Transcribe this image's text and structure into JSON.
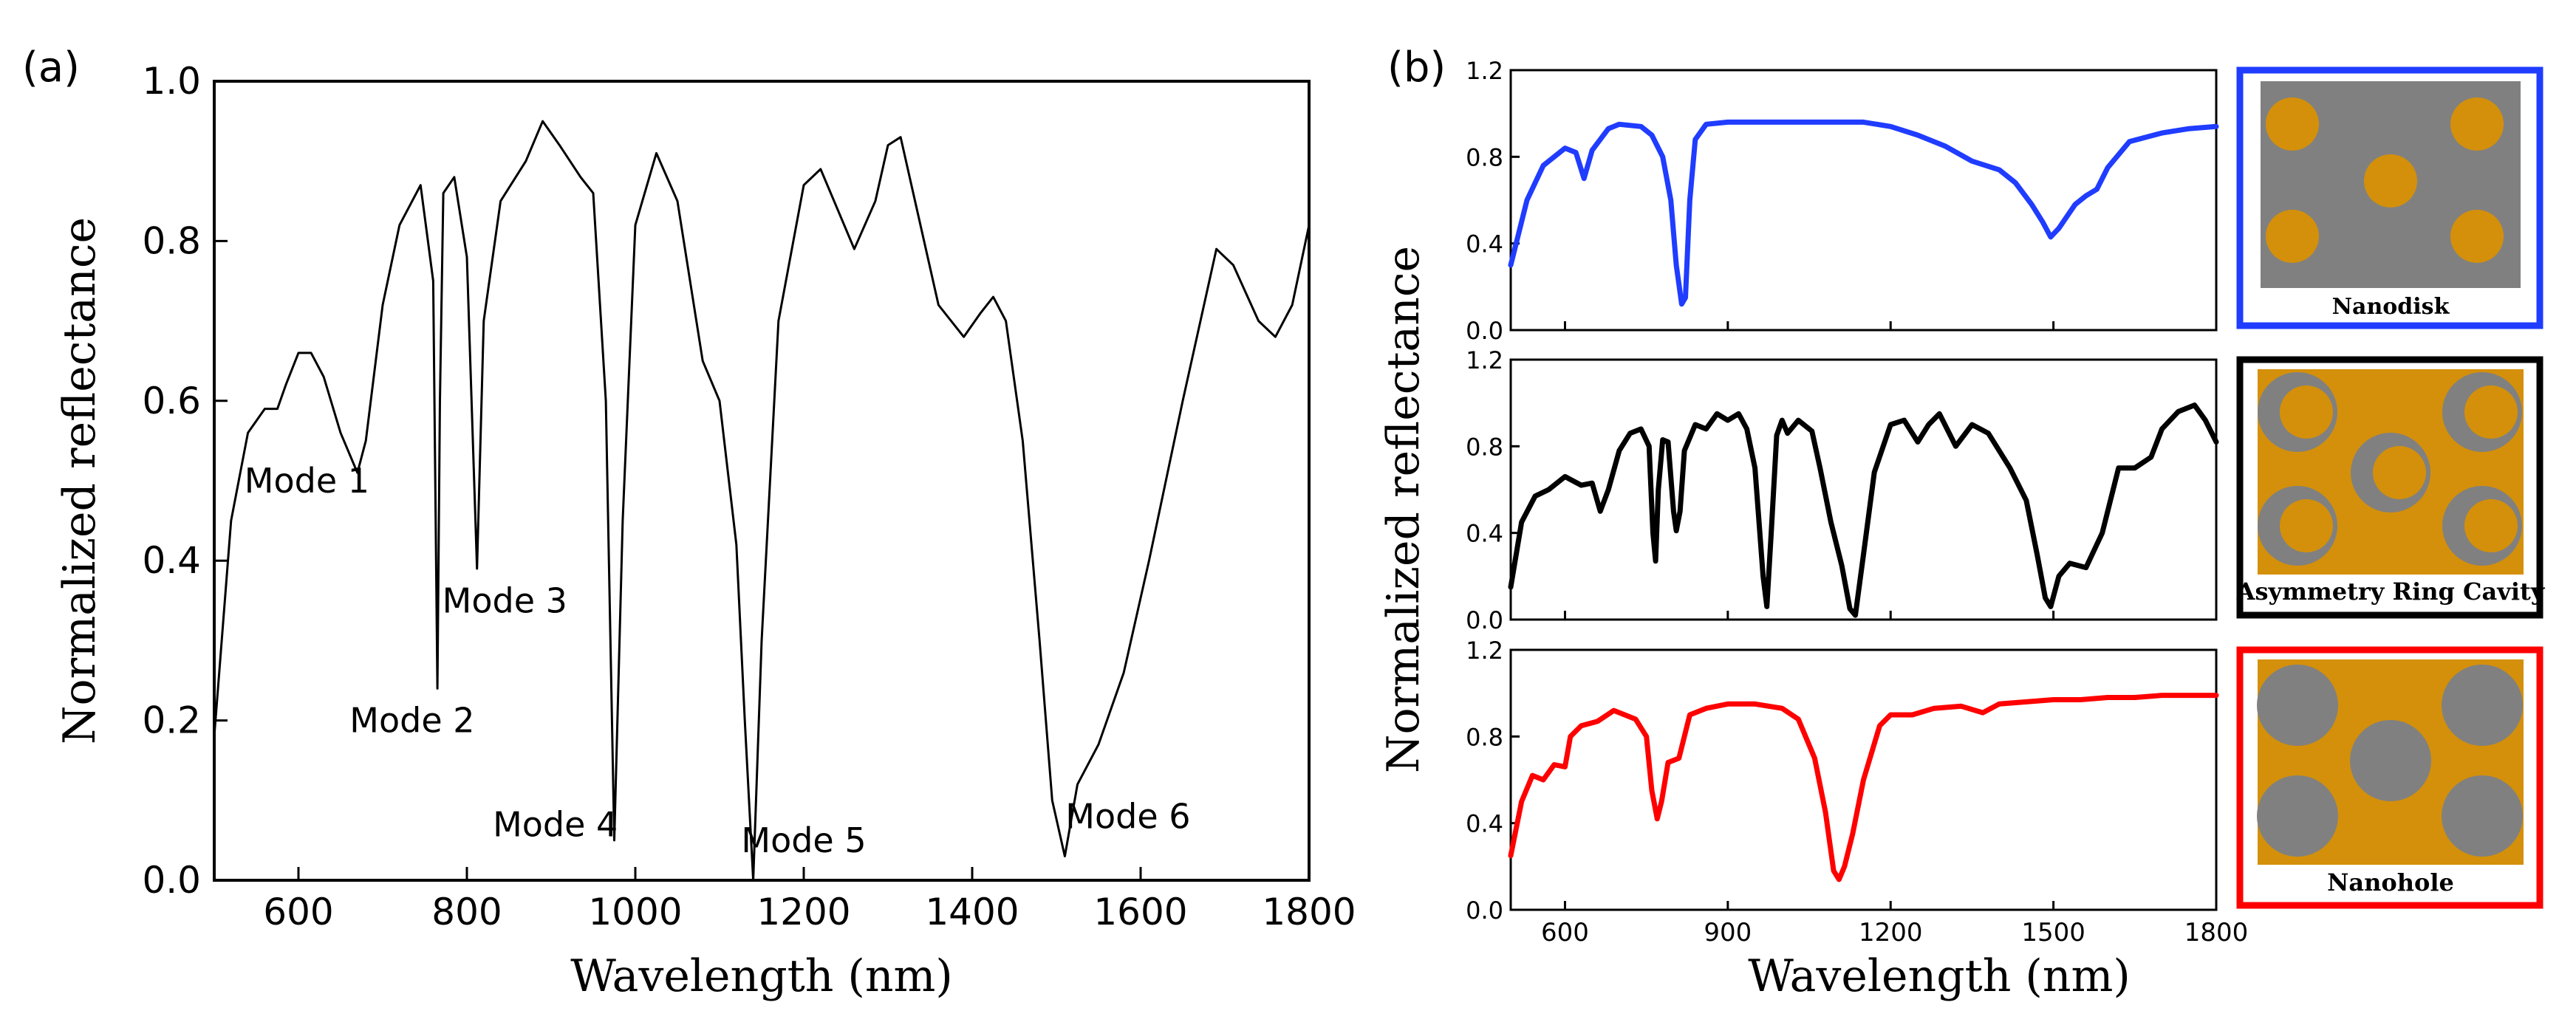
{
  "chart_data": [
    {
      "type": "line",
      "panel_label": "(a)",
      "xlabel": "Wavelength (nm)",
      "ylabel": "Normalized reflectance",
      "xlim": [
        500,
        1800
      ],
      "ylim": [
        0,
        1.0
      ],
      "xticks": [
        600,
        800,
        1000,
        1200,
        1400,
        1600,
        1800
      ],
      "xtick_labels": [
        "600",
        "800",
        "1000",
        "1200",
        "1400",
        "1600",
        "1800"
      ],
      "yticks": [
        0.0,
        0.2,
        0.4,
        0.6,
        0.8,
        1.0
      ],
      "ytick_labels": [
        "0.0",
        "0.2",
        "0.4",
        "0.6",
        "0.8",
        "1.0"
      ],
      "series": [
        {
          "name": "reflectance",
          "color": "#000000",
          "x": [
            500,
            520,
            540,
            560,
            575,
            585,
            600,
            615,
            630,
            650,
            670,
            680,
            700,
            720,
            745,
            760,
            765,
            768,
            772,
            785,
            800,
            812,
            820,
            840,
            870,
            890,
            910,
            935,
            950,
            965,
            975,
            985,
            1000,
            1025,
            1050,
            1080,
            1100,
            1120,
            1130,
            1140,
            1150,
            1170,
            1200,
            1220,
            1240,
            1260,
            1285,
            1300,
            1315,
            1330,
            1360,
            1390,
            1410,
            1425,
            1440,
            1460,
            1480,
            1495,
            1510,
            1525,
            1550,
            1580,
            1610,
            1650,
            1690,
            1710,
            1740,
            1760,
            1780,
            1800
          ],
          "y": [
            0.18,
            0.45,
            0.56,
            0.59,
            0.59,
            0.62,
            0.66,
            0.66,
            0.63,
            0.56,
            0.51,
            0.55,
            0.72,
            0.82,
            0.87,
            0.75,
            0.24,
            0.6,
            0.86,
            0.88,
            0.78,
            0.39,
            0.7,
            0.85,
            0.9,
            0.95,
            0.92,
            0.88,
            0.86,
            0.6,
            0.05,
            0.45,
            0.82,
            0.91,
            0.85,
            0.65,
            0.6,
            0.42,
            0.2,
            0.0,
            0.3,
            0.7,
            0.87,
            0.89,
            0.84,
            0.79,
            0.85,
            0.92,
            0.93,
            0.86,
            0.72,
            0.68,
            0.71,
            0.73,
            0.7,
            0.55,
            0.3,
            0.1,
            0.03,
            0.12,
            0.17,
            0.26,
            0.4,
            0.6,
            0.79,
            0.77,
            0.7,
            0.68,
            0.72,
            0.82
          ]
        }
      ],
      "annotations": [
        {
          "text": "Mode 1",
          "x": 610,
          "y": 0.5
        },
        {
          "text": "Mode 2",
          "x": 735,
          "y": 0.2
        },
        {
          "text": "Mode 3",
          "x": 845,
          "y": 0.35
        },
        {
          "text": "Mode 4",
          "x": 905,
          "y": 0.07
        },
        {
          "text": "Mode 5",
          "x": 1200,
          "y": 0.05
        },
        {
          "text": "Mode 6",
          "x": 1585,
          "y": 0.08
        }
      ]
    },
    {
      "type": "line",
      "panel_label": "(b)",
      "xlabel": "Wavelength (nm)",
      "ylabel": "Normalized reflectance",
      "xlim": [
        500,
        1800
      ],
      "ylim": [
        0,
        1.2
      ],
      "xticks": [
        600,
        900,
        1200,
        1500,
        1800
      ],
      "xtick_labels": [
        "600",
        "900",
        "1200",
        "1500",
        "1800"
      ],
      "yticks": [
        0.0,
        0.4,
        0.8,
        1.2
      ],
      "ytick_labels": [
        "0.0",
        "0.4",
        "0.8",
        "1.2"
      ],
      "subplots": [
        {
          "name": "Nanodisk",
          "color": "#1f3cff",
          "x": [
            500,
            530,
            560,
            600,
            620,
            635,
            650,
            680,
            700,
            740,
            760,
            780,
            795,
            805,
            815,
            822,
            830,
            840,
            860,
            900,
            1000,
            1100,
            1150,
            1200,
            1250,
            1300,
            1350,
            1400,
            1430,
            1460,
            1480,
            1495,
            1510,
            1540,
            1560,
            1580,
            1600,
            1640,
            1700,
            1750,
            1800
          ],
          "y": [
            0.3,
            0.6,
            0.76,
            0.84,
            0.82,
            0.7,
            0.83,
            0.93,
            0.95,
            0.94,
            0.9,
            0.8,
            0.6,
            0.3,
            0.12,
            0.15,
            0.6,
            0.88,
            0.95,
            0.96,
            0.96,
            0.96,
            0.96,
            0.94,
            0.9,
            0.85,
            0.78,
            0.74,
            0.68,
            0.58,
            0.5,
            0.43,
            0.47,
            0.58,
            0.62,
            0.65,
            0.75,
            0.87,
            0.91,
            0.93,
            0.94
          ]
        },
        {
          "name": "Asymmetry Ring Cavity",
          "color": "#000000",
          "x": [
            500,
            520,
            545,
            570,
            600,
            630,
            650,
            665,
            680,
            700,
            720,
            740,
            755,
            762,
            767,
            772,
            780,
            790,
            800,
            805,
            812,
            820,
            840,
            860,
            880,
            900,
            920,
            935,
            950,
            965,
            972,
            980,
            990,
            1000,
            1010,
            1030,
            1055,
            1070,
            1090,
            1110,
            1125,
            1135,
            1150,
            1170,
            1200,
            1225,
            1250,
            1270,
            1290,
            1320,
            1350,
            1380,
            1420,
            1450,
            1470,
            1485,
            1495,
            1510,
            1530,
            1560,
            1590,
            1620,
            1650,
            1680,
            1700,
            1730,
            1760,
            1780,
            1800
          ],
          "y": [
            0.15,
            0.45,
            0.57,
            0.6,
            0.66,
            0.62,
            0.63,
            0.5,
            0.6,
            0.78,
            0.86,
            0.88,
            0.8,
            0.4,
            0.27,
            0.6,
            0.83,
            0.82,
            0.5,
            0.41,
            0.5,
            0.78,
            0.9,
            0.88,
            0.95,
            0.92,
            0.95,
            0.88,
            0.7,
            0.2,
            0.06,
            0.4,
            0.85,
            0.92,
            0.86,
            0.92,
            0.87,
            0.7,
            0.45,
            0.25,
            0.05,
            0.02,
            0.3,
            0.68,
            0.9,
            0.92,
            0.82,
            0.9,
            0.95,
            0.8,
            0.9,
            0.86,
            0.7,
            0.55,
            0.3,
            0.1,
            0.06,
            0.2,
            0.26,
            0.24,
            0.4,
            0.7,
            0.7,
            0.75,
            0.88,
            0.96,
            0.99,
            0.92,
            0.82
          ]
        },
        {
          "name": "Nanohole",
          "color": "#ff0000",
          "x": [
            500,
            520,
            540,
            560,
            580,
            600,
            610,
            630,
            660,
            690,
            710,
            730,
            750,
            760,
            770,
            778,
            790,
            810,
            830,
            860,
            900,
            950,
            1000,
            1030,
            1060,
            1080,
            1095,
            1105,
            1115,
            1130,
            1150,
            1180,
            1200,
            1240,
            1280,
            1330,
            1370,
            1400,
            1450,
            1500,
            1550,
            1600,
            1650,
            1700,
            1800
          ],
          "y": [
            0.25,
            0.5,
            0.62,
            0.6,
            0.67,
            0.66,
            0.8,
            0.85,
            0.87,
            0.92,
            0.9,
            0.88,
            0.8,
            0.55,
            0.42,
            0.5,
            0.68,
            0.7,
            0.9,
            0.93,
            0.95,
            0.95,
            0.93,
            0.88,
            0.7,
            0.45,
            0.18,
            0.14,
            0.2,
            0.35,
            0.6,
            0.85,
            0.9,
            0.9,
            0.93,
            0.94,
            0.91,
            0.95,
            0.96,
            0.97,
            0.97,
            0.98,
            0.98,
            0.99,
            0.99
          ]
        }
      ],
      "schematics": [
        {
          "label": "Nanodisk",
          "frame_color": "#1f3cff"
        },
        {
          "label": "Asymmetry Ring Cavity",
          "frame_color": "#000000"
        },
        {
          "label": "Nanohole",
          "frame_color": "#ff0000"
        }
      ]
    }
  ],
  "colors": {
    "gold": "#d4900a",
    "gray": "#808080"
  }
}
